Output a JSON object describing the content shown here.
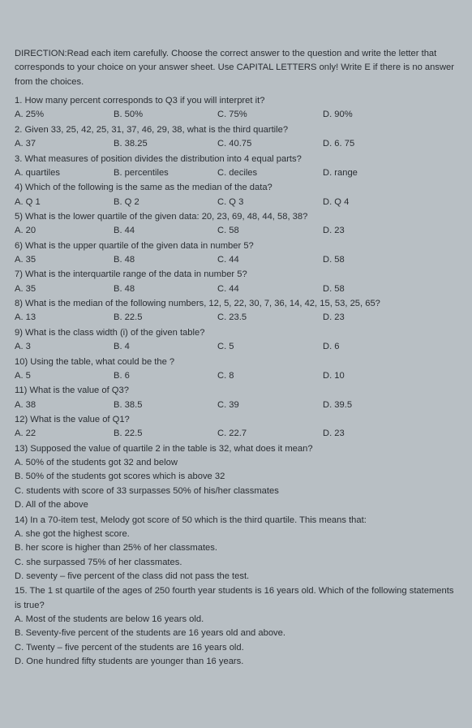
{
  "direction": "DIRECTION:Read each item carefully. Choose the correct answer to the question and write the letter that corresponds to your choice on your answer sheet. Use CAPITAL LETTERS only! Write E if there is no answer from the choices.",
  "q1": {
    "text": "1. How many percent corresponds to Q3 if you will interpret it?",
    "a": "A. 25%",
    "b": "B. 50%",
    "c": "C. 75%",
    "d": "D. 90%"
  },
  "q2": {
    "text": "2. Given 33, 25, 42, 25, 31, 37, 46, 29, 38, what is the third quartile?",
    "a": "A. 37",
    "b": "B. 38.25",
    "c": "C. 40.75",
    "d": "D. 6. 75"
  },
  "q3": {
    "text": "3. What measures of position divides the distribution into 4 equal parts?",
    "a": "A. quartiles",
    "b": "B. percentiles",
    "c": "C. deciles",
    "d": "D. range"
  },
  "q4": {
    "text": "4) Which of the following is the same as the median of the data?",
    "a": "A. Q 1",
    "b": "B. Q 2",
    "c": "C. Q 3",
    "d": "D. Q 4"
  },
  "q5": {
    "text": "5) What is the lower quartile of the given data: 20, 23, 69, 48, 44, 58, 38?",
    "a": "A. 20",
    "b": "B. 44",
    "c": "C. 58",
    "d": "D. 23"
  },
  "q6": {
    "text": "6) What is the upper quartile of the given data in number 5?",
    "a": "A. 35",
    "b": "B. 48",
    "c": "C. 44",
    "d": "D. 58"
  },
  "q7": {
    "text": "7) What is the interquartile range of the data in number 5?",
    "a": "A. 35",
    "b": "B. 48",
    "c": "C. 44",
    "d": "D. 58"
  },
  "q8": {
    "text": "8) What is the median of the following numbers, 12, 5, 22, 30, 7, 36, 14, 42, 15, 53, 25, 65?",
    "a": "A. 13",
    "b": "B. 22.5",
    "c": "C. 23.5",
    "d": "D. 23"
  },
  "q9": {
    "text": "9) What is the class width (i) of the given table?",
    "a": "A. 3",
    "b": "B. 4",
    "c": "C. 5",
    "d": "D. 6"
  },
  "q10": {
    "text": "10) Using the table, what could be the ?",
    "a": "A. 5",
    "b": "B. 6",
    "c": "C. 8",
    "d": "D. 10"
  },
  "q11": {
    "text": "11) What is the value of Q3?",
    "a": "A. 38",
    "b": "B. 38.5",
    "c": "C. 39",
    "d": "D. 39.5"
  },
  "q12": {
    "text": "12) What is the value of Q1?",
    "a": "A. 22",
    "b": "B. 22.5",
    "c": "C. 22.7",
    "d": "D. 23"
  },
  "q13": {
    "text": "13) Supposed the value of quartile 2 in the table is 32, what does it mean?",
    "a": "A. 50% of the students got 32 and below",
    "b": "B. 50% of the students got scores which is above 32",
    "c": "C. students with score of 33 surpasses 50% of his/her classmates",
    "d": "D. All of the above"
  },
  "q14": {
    "text": "14) In a 70-item test, Melody got score of 50 which is the third quartile. This means that:",
    "a": "A. she got the highest score.",
    "b": "B. her score is higher than 25% of her classmates.",
    "c": "C. she surpassed 75% of her classmates.",
    "d": "D. seventy – five percent of the class did not pass the test."
  },
  "q15": {
    "text": "15. The 1 st quartile of the ages of 250 fourth year students is 16 years old. Which of the following statements is true?",
    "a": "A. Most of the students are below 16 years old.",
    "b": "B. Seventy-five percent of the students are 16 years old and above.",
    "c": "C. Twenty – five percent of the students are 16 years old.",
    "d": "D. One hundred fifty students are younger than 16 years."
  }
}
